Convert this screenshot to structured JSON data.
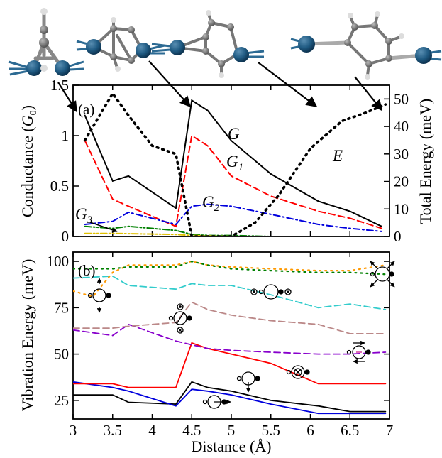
{
  "chart_data": [
    {
      "type": "line",
      "panel_label": "(a)",
      "xlabel": "Distance (Å)",
      "ylabel": "Conductance (G0)",
      "ylabel_right": "Total Energy (meV)",
      "xlim": [
        3,
        7
      ],
      "ylim": [
        0,
        1.5
      ],
      "ylim_right": [
        0,
        55
      ],
      "x_ticks": [
        "3",
        "3.5",
        "4",
        "4.5",
        "5",
        "5.5",
        "6",
        "6.5",
        "7"
      ],
      "y_ticks": [
        "0",
        "0.5",
        "1",
        "1.5"
      ],
      "y_ticks_right": [
        "0",
        "10",
        "20",
        "30",
        "40",
        "50"
      ],
      "series": [
        {
          "name": "G",
          "color": "#000000",
          "style": "solid",
          "axis": "left",
          "x": [
            3.15,
            3.5,
            3.7,
            4.3,
            4.5,
            4.7,
            5.0,
            5.5,
            6.1,
            6.5,
            6.9
          ],
          "y": [
            1.2,
            0.55,
            0.6,
            0.28,
            1.35,
            1.25,
            0.95,
            0.62,
            0.35,
            0.25,
            0.1
          ]
        },
        {
          "name": "G1",
          "color": "#ff0000",
          "style": "dashed",
          "axis": "left",
          "x": [
            3.15,
            3.5,
            3.7,
            4.3,
            4.5,
            4.7,
            5.0,
            5.5,
            6.1,
            6.5,
            6.9
          ],
          "y": [
            0.95,
            0.37,
            0.3,
            0.1,
            1.0,
            0.9,
            0.6,
            0.4,
            0.25,
            0.18,
            0.08
          ]
        },
        {
          "name": "G2",
          "color": "#0000dd",
          "style": "dashdot",
          "axis": "left",
          "x": [
            3.15,
            3.5,
            3.7,
            4.3,
            4.5,
            4.7,
            5.0,
            5.5,
            6.1,
            6.5,
            6.9
          ],
          "y": [
            0.12,
            0.15,
            0.24,
            0.12,
            0.3,
            0.32,
            0.3,
            0.22,
            0.12,
            0.08,
            0.05
          ]
        },
        {
          "name": "G3",
          "color": "#008000",
          "style": "dashdotdot",
          "axis": "left",
          "x": [
            3.15,
            3.5,
            3.7,
            4.3,
            4.5,
            4.7,
            5.0,
            5.5,
            6.1,
            6.5,
            6.9
          ],
          "y": [
            0.1,
            0.08,
            0.1,
            0.06,
            0.02,
            0.01,
            0.01,
            0.0,
            0.0,
            0.0,
            0.0
          ]
        },
        {
          "name": "",
          "color": "#e0c000",
          "style": "dashdotdot",
          "axis": "left",
          "x": [
            3.15,
            3.5,
            4.3,
            4.5,
            5.0,
            6.0,
            6.9
          ],
          "y": [
            0.03,
            0.03,
            0.02,
            0.01,
            0.0,
            0.0,
            0.0
          ]
        },
        {
          "name": "E",
          "color": "#000000",
          "style": "dotted",
          "axis": "right",
          "x": [
            3.15,
            3.5,
            3.7,
            4.0,
            4.3,
            4.5,
            4.7,
            5.0,
            5.3,
            5.6,
            6.0,
            6.4,
            6.7,
            6.95
          ],
          "y": [
            35,
            52,
            44,
            33,
            30,
            0,
            0,
            0,
            5,
            15,
            32,
            42,
            45,
            48
          ]
        }
      ]
    },
    {
      "type": "line",
      "panel_label": "(b)",
      "xlabel": "Distance (Å)",
      "ylabel": "Vibration Energy (meV)",
      "xlim": [
        3,
        7
      ],
      "ylim": [
        15,
        105
      ],
      "x_ticks": [
        "3",
        "3.5",
        "4",
        "4.5",
        "5",
        "5.5",
        "6",
        "6.5",
        "7"
      ],
      "y_ticks": [
        "25",
        "50",
        "75",
        "100"
      ],
      "series": [
        {
          "color": "#000000",
          "style": "solid",
          "x": [
            3.0,
            3.5,
            3.7,
            4.3,
            4.5,
            4.7,
            5.0,
            5.5,
            6.1,
            6.5,
            6.95
          ],
          "y": [
            28,
            28,
            24,
            23,
            35,
            32,
            30,
            25,
            22,
            19,
            19
          ]
        },
        {
          "color": "#0000dd",
          "style": "solid",
          "x": [
            3.0,
            3.5,
            3.7,
            4.3,
            4.5,
            4.7,
            5.0,
            5.5,
            6.1,
            6.5,
            6.95
          ],
          "y": [
            35,
            32,
            30,
            22,
            31,
            30,
            28,
            23,
            18,
            18,
            18
          ]
        },
        {
          "color": "#ff0000",
          "style": "solid",
          "x": [
            3.0,
            3.5,
            3.7,
            4.3,
            4.5,
            4.7,
            5.0,
            5.5,
            6.1,
            6.5,
            6.95
          ],
          "y": [
            34,
            34,
            32,
            32,
            56,
            53,
            50,
            45,
            34,
            34,
            34
          ]
        },
        {
          "color": "#8800cc",
          "style": "dashed",
          "x": [
            3.0,
            3.5,
            3.7,
            4.3,
            4.5,
            4.7,
            5.0,
            5.5,
            6.1,
            6.5,
            6.95
          ],
          "y": [
            63,
            60,
            66,
            57,
            55,
            53,
            52,
            51,
            50,
            50,
            51
          ]
        },
        {
          "color": "#bb8888",
          "style": "dashed",
          "x": [
            3.0,
            3.5,
            3.7,
            4.3,
            4.5,
            4.7,
            5.0,
            5.5,
            6.1,
            6.5,
            6.95
          ],
          "y": [
            64,
            64,
            65,
            67,
            78,
            74,
            71,
            68,
            66,
            61,
            61
          ]
        },
        {
          "color": "#33cccc",
          "style": "dashed",
          "x": [
            3.0,
            3.5,
            3.7,
            4.3,
            4.5,
            4.7,
            5.0,
            5.5,
            6.1,
            6.5,
            6.95
          ],
          "y": [
            91,
            92,
            87,
            85,
            88,
            87,
            87,
            82,
            75,
            77,
            74
          ]
        },
        {
          "color": "#ff9900",
          "style": "dotted",
          "x": [
            3.0,
            3.25,
            3.5,
            3.7,
            4.0,
            4.3,
            4.5,
            4.7,
            5.0,
            5.5,
            6.1,
            6.5,
            6.95
          ],
          "y": [
            84,
            81,
            94,
            98,
            98,
            98,
            100,
            98,
            97,
            96,
            95,
            95,
            98
          ]
        },
        {
          "color": "#008000",
          "style": "dotted",
          "x": [
            3.0,
            3.5,
            3.7,
            4.3,
            4.5,
            4.7,
            5.0,
            5.5,
            6.1,
            6.5,
            6.95
          ],
          "y": [
            96,
            96,
            97,
            97,
            100,
            98,
            96,
            95,
            94,
            94,
            93
          ]
        }
      ]
    }
  ]
}
